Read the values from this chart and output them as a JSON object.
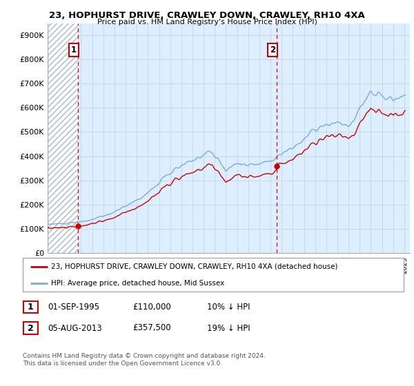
{
  "title": "23, HOPHURST DRIVE, CRAWLEY DOWN, CRAWLEY, RH10 4XA",
  "subtitle": "Price paid vs. HM Land Registry's House Price Index (HPI)",
  "ylabel_ticks": [
    "£0",
    "£100K",
    "£200K",
    "£300K",
    "£400K",
    "£500K",
    "£600K",
    "£700K",
    "£800K",
    "£900K"
  ],
  "ytick_values": [
    0,
    100000,
    200000,
    300000,
    400000,
    500000,
    600000,
    700000,
    800000,
    900000
  ],
  "ylim": [
    0,
    950000
  ],
  "xlim_start": 1993.0,
  "xlim_end": 2025.5,
  "hpi_color": "#7aabdb",
  "price_color": "#cc0000",
  "grid_color": "#c8d8e8",
  "plot_bg": "#ddeeff",
  "sale1_year": 1995.75,
  "sale1_price": 110000,
  "sale2_year": 2013.58,
  "sale2_price": 357500,
  "sale1_label": "1",
  "sale2_label": "2",
  "legend_line1": "23, HOPHURST DRIVE, CRAWLEY DOWN, CRAWLEY, RH10 4XA (detached house)",
  "legend_line2": "HPI: Average price, detached house, Mid Sussex",
  "table_row1": [
    "1",
    "01-SEP-1995",
    "£110,000",
    "10% ↓ HPI"
  ],
  "table_row2": [
    "2",
    "05-AUG-2013",
    "£357,500",
    "19% ↓ HPI"
  ],
  "footnote": "Contains HM Land Registry data © Crown copyright and database right 2024.\nThis data is licensed under the Open Government Licence v3.0."
}
